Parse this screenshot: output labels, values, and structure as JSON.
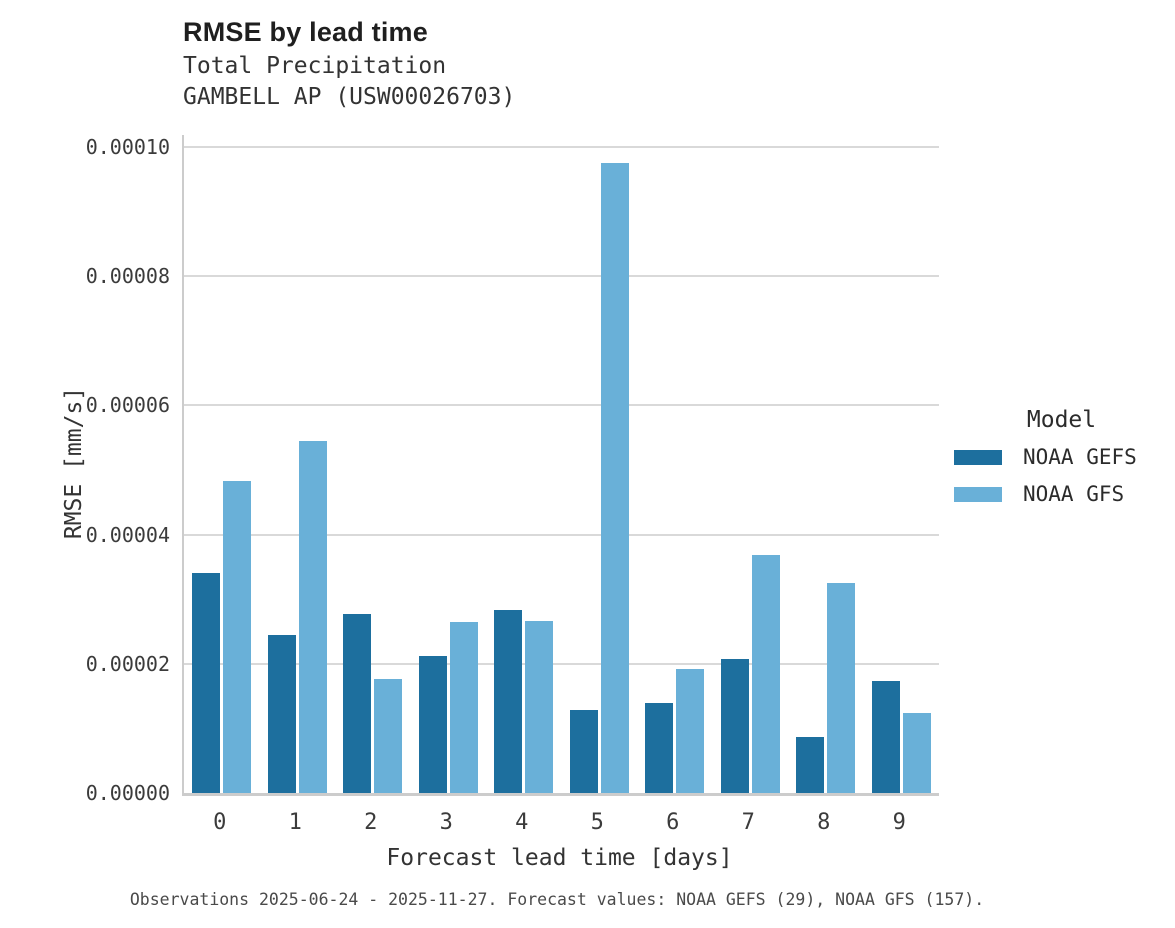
{
  "chart_data": {
    "type": "bar",
    "title": "RMSE by lead time",
    "subtitle_lines": [
      "Total Precipitation",
      "GAMBELL AP (USW00026703)"
    ],
    "xlabel": "Forecast lead time [days]",
    "ylabel": "RMSE [mm/s]",
    "categories": [
      "0",
      "1",
      "2",
      "3",
      "4",
      "5",
      "6",
      "7",
      "8",
      "9"
    ],
    "series": [
      {
        "name": "NOAA GEFS",
        "color": "#1d6f9e",
        "values": [
          3.41e-05,
          2.45e-05,
          2.77e-05,
          2.12e-05,
          2.83e-05,
          1.28e-05,
          1.39e-05,
          2.07e-05,
          8.7e-06,
          1.73e-05
        ]
      },
      {
        "name": "NOAA GFS",
        "color": "#69b0d8",
        "values": [
          4.83e-05,
          5.45e-05,
          1.76e-05,
          2.65e-05,
          2.66e-05,
          9.75e-05,
          1.92e-05,
          3.68e-05,
          3.25e-05,
          1.24e-05
        ]
      }
    ],
    "ylim": [
      0,
      0.0001
    ],
    "ytick_values": [
      0,
      2e-05,
      4e-05,
      6e-05,
      8e-05,
      0.0001
    ],
    "ytick_labels": [
      "0.00000",
      "0.00002",
      "0.00004",
      "0.00006",
      "0.00008",
      "0.00010"
    ],
    "grid": "horizontal",
    "legend_title": "Model",
    "legend_position": "right",
    "caption": "Observations 2025-06-24 - 2025-11-27. Forecast values: NOAA GEFS (29), NOAA GFS (157)."
  }
}
